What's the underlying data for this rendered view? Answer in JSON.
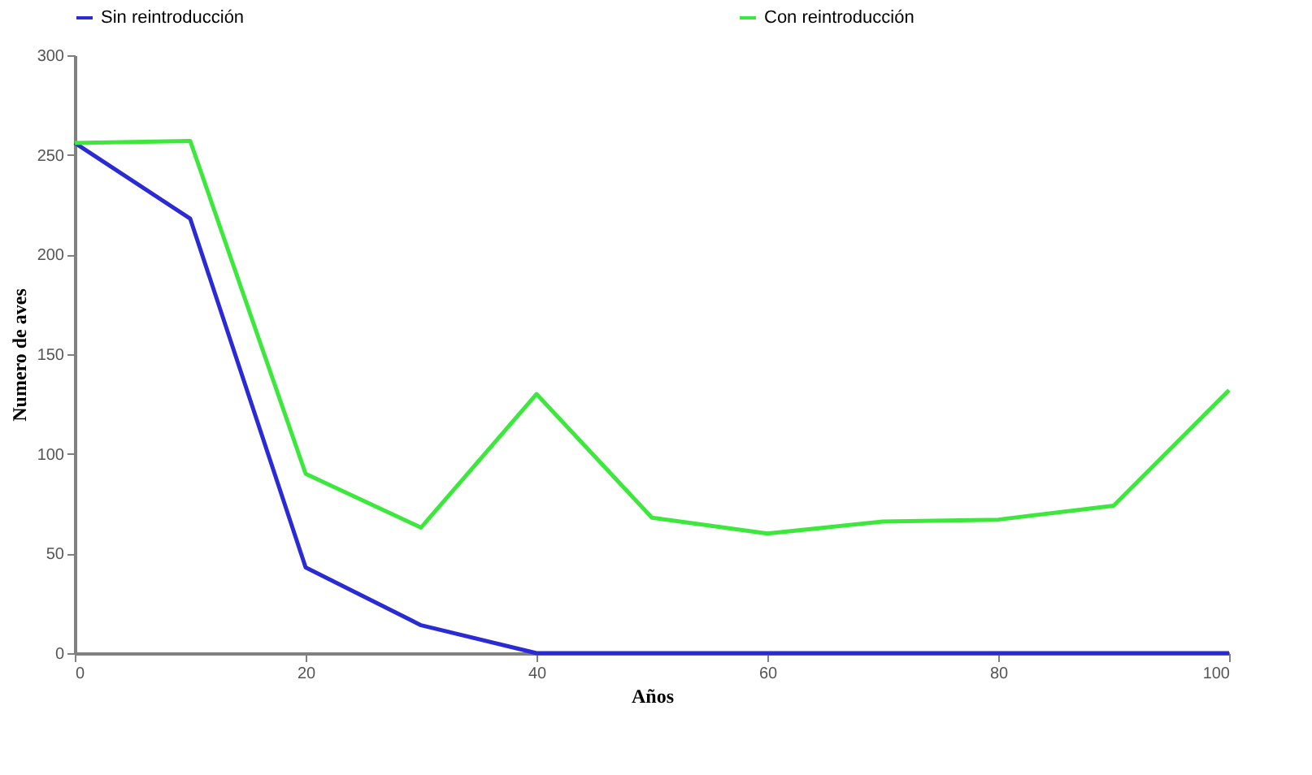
{
  "chart_data": {
    "type": "line",
    "xlabel": "Años",
    "ylabel": "Numero de aves",
    "x": [
      0,
      10,
      20,
      30,
      40,
      50,
      60,
      70,
      80,
      90,
      100
    ],
    "series": [
      {
        "name": "Sin reintroducción",
        "color": "#2b2bd6",
        "values": [
          256,
          218,
          43,
          14,
          0,
          0,
          0,
          0,
          0,
          0,
          0
        ]
      },
      {
        "name": "Con reintroducción",
        "color": "#3de83d",
        "values": [
          256,
          257,
          90,
          63,
          130,
          68,
          60,
          66,
          67,
          74,
          132
        ]
      }
    ],
    "xlim": [
      0,
      100
    ],
    "xticks": [
      0,
      20,
      40,
      60,
      80,
      100
    ],
    "ylim": [
      0,
      300
    ],
    "yticks": [
      0,
      50,
      100,
      150,
      200,
      250,
      300
    ],
    "grid": false,
    "legend": "top",
    "marker": "none",
    "line_style": "solid"
  }
}
